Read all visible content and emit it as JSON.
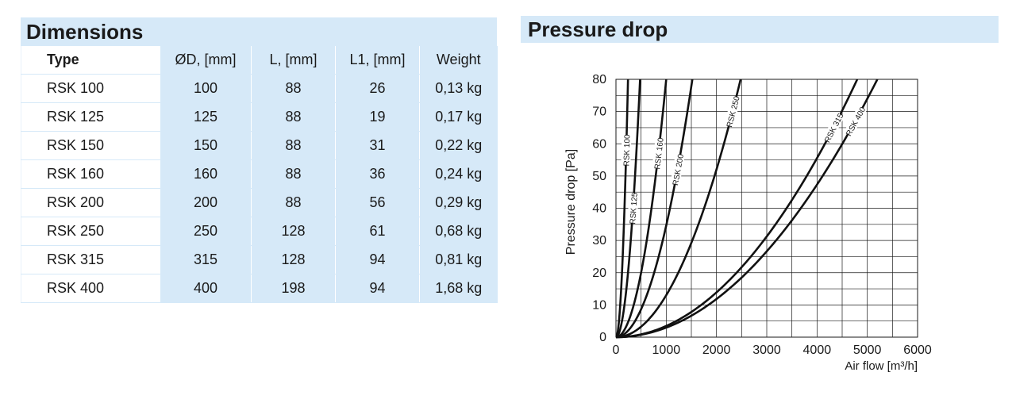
{
  "dimensions": {
    "title": "Dimensions",
    "headers": [
      "Type",
      "ØD, [mm]",
      "L, [mm]",
      "L1, [mm]",
      "Weight"
    ],
    "rows": [
      [
        "RSK 100",
        "100",
        "88",
        "26",
        "0,13 kg"
      ],
      [
        "RSK 125",
        "125",
        "88",
        "19",
        "0,17 kg"
      ],
      [
        "RSK 150",
        "150",
        "88",
        "31",
        "0,22 kg"
      ],
      [
        "RSK 160",
        "160",
        "88",
        "36",
        "0,24 kg"
      ],
      [
        "RSK 200",
        "200",
        "88",
        "56",
        "0,29 kg"
      ],
      [
        "RSK 250",
        "250",
        "128",
        "61",
        "0,68 kg"
      ],
      [
        "RSK 315",
        "315",
        "128",
        "94",
        "0,81 kg"
      ],
      [
        "RSK 400",
        "400",
        "198",
        "94",
        "1,68 kg"
      ]
    ]
  },
  "pressure_drop": {
    "title": "Pressure drop"
  },
  "chart_data": {
    "type": "line",
    "ylabel": "Pressure drop [Pa]",
    "xlabel": "Air flow [m³/h]",
    "xlim": [
      0,
      6000
    ],
    "ylim": [
      0,
      80
    ],
    "xticks": [
      "0",
      "1000",
      "2000",
      "3000",
      "4000",
      "5000",
      "6000"
    ],
    "yticks": [
      "0",
      "10",
      "20",
      "30",
      "40",
      "50",
      "60",
      "70",
      "80"
    ],
    "grid": true,
    "series": [
      {
        "name": "RSK 100",
        "x": [
          0,
          60,
          120,
          180,
          240
        ],
        "y": [
          0,
          4,
          17,
          40,
          80
        ]
      },
      {
        "name": "RSK 125",
        "x": [
          0,
          120,
          240,
          360,
          480
        ],
        "y": [
          0,
          5,
          20,
          45,
          80
        ]
      },
      {
        "name": "RSK 160",
        "x": [
          0,
          250,
          500,
          750,
          1000
        ],
        "y": [
          0,
          5,
          20,
          45,
          80
        ]
      },
      {
        "name": "RSK 200",
        "x": [
          0,
          380,
          760,
          1140,
          1520
        ],
        "y": [
          0,
          5,
          20,
          45,
          80
        ]
      },
      {
        "name": "RSK 250",
        "x": [
          0,
          620,
          1240,
          1860,
          2480
        ],
        "y": [
          0,
          5,
          20,
          45,
          80
        ]
      },
      {
        "name": "RSK 315",
        "x": [
          0,
          1200,
          2400,
          3600,
          4800
        ],
        "y": [
          0,
          5,
          20,
          45,
          80
        ]
      },
      {
        "name": "RSK 400",
        "x": [
          0,
          1300,
          2600,
          3900,
          5200
        ],
        "y": [
          0,
          5,
          20,
          45,
          80
        ]
      }
    ]
  }
}
